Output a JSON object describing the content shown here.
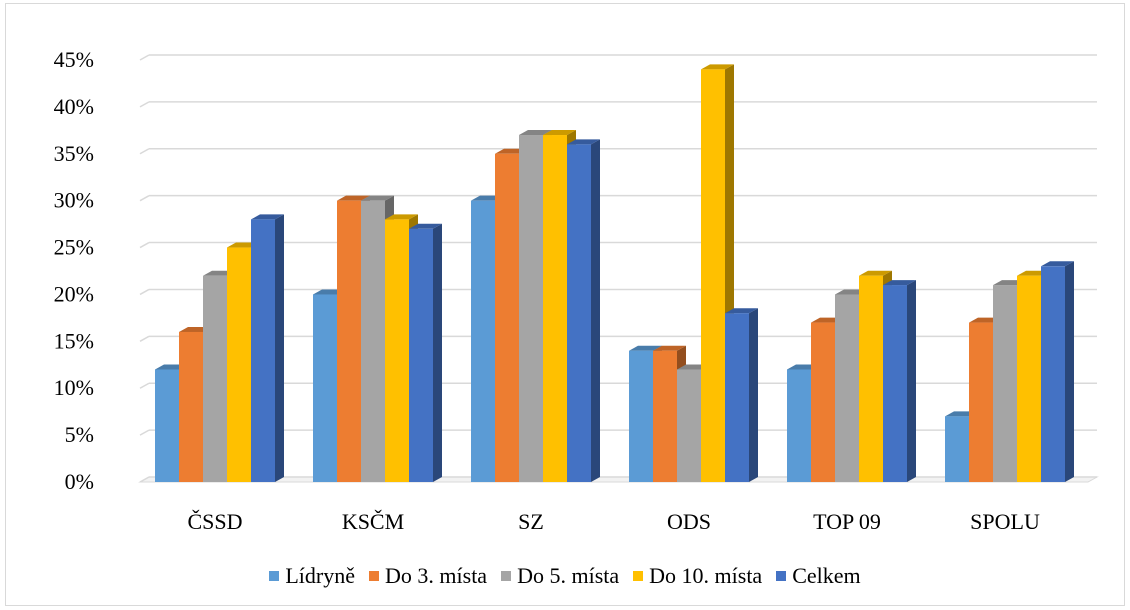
{
  "chart_data": {
    "type": "bar",
    "categories": [
      "ČSSD",
      "KSČM",
      "SZ",
      "ODS",
      "TOP 09",
      "SPOLU"
    ],
    "series": [
      {
        "name": "Lídryně",
        "color": "#5b9bd5",
        "values": [
          12,
          20,
          30,
          14,
          12,
          7
        ]
      },
      {
        "name": "Do 3. místa",
        "color": "#ed7d31",
        "values": [
          16,
          30,
          35,
          14,
          17,
          17
        ]
      },
      {
        "name": "Do 5. místa",
        "color": "#a5a5a5",
        "values": [
          22,
          30,
          37,
          12,
          20,
          21
        ]
      },
      {
        "name": "Do 10. místa",
        "color": "#ffc000",
        "values": [
          25,
          28,
          37,
          44,
          22,
          22
        ]
      },
      {
        "name": "Celkem",
        "color": "#4472c4",
        "values": [
          28,
          27,
          36,
          18,
          21,
          23
        ]
      }
    ],
    "yticks": [
      "0%",
      "5%",
      "10%",
      "15%",
      "20%",
      "25%",
      "30%",
      "35%",
      "40%",
      "45%"
    ],
    "ylim": [
      0,
      45
    ],
    "grid": true,
    "legend_position": "bottom",
    "style": "3d-clustered-columns"
  }
}
